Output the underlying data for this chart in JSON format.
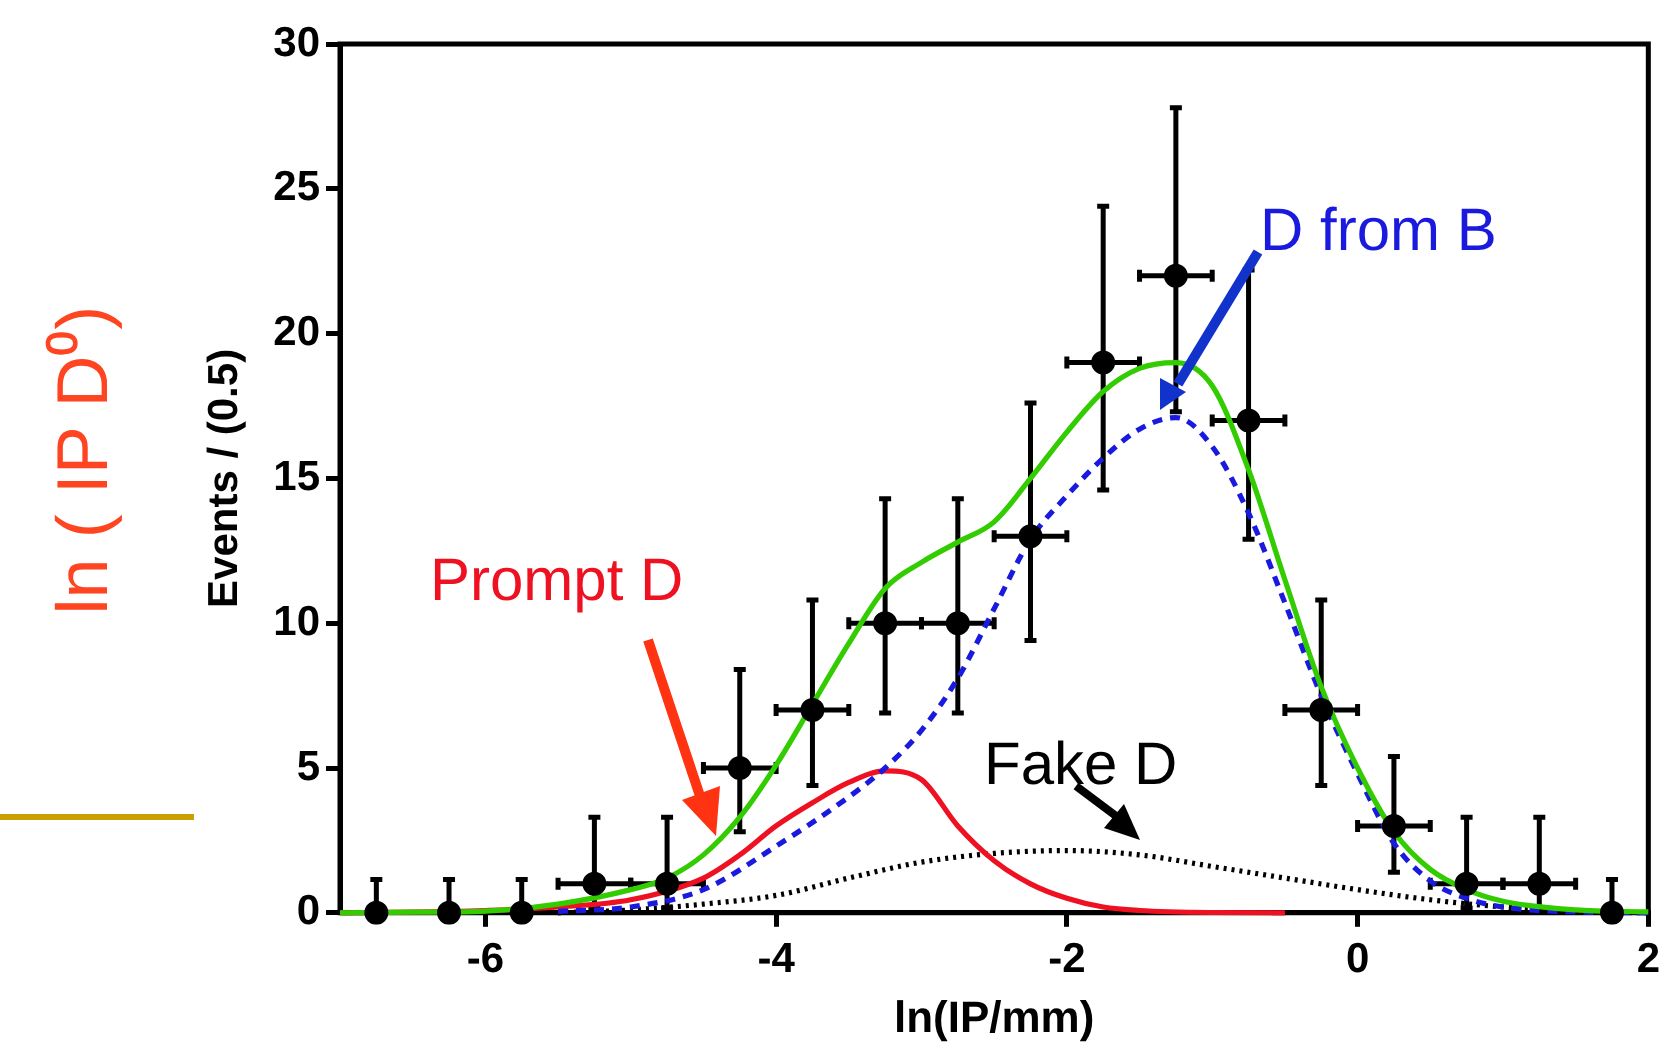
{
  "chart_data": {
    "type": "line",
    "xlabel": "ln(IP/mm)",
    "ylabel": "Events / (0.5)",
    "xlim": [
      -7,
      2
    ],
    "xticks": [
      -6,
      -4,
      -2,
      0,
      2
    ],
    "ylim": [
      0,
      30
    ],
    "yticks": [
      0,
      5,
      10,
      15,
      20,
      25,
      30
    ],
    "grid": false,
    "annotations": [
      "ln ( IP D⁰)"
    ],
    "series": [
      {
        "type": "scatter",
        "color": "#000000",
        "marker": "circle",
        "x": [
          -6.75,
          -6.25,
          -5.75,
          -5.25,
          -4.75,
          -4.25,
          -3.75,
          -3.25,
          -2.75,
          -2.25,
          -1.75,
          -1.25,
          -0.75,
          -0.25,
          0.25,
          0.75,
          1.25,
          1.75
        ],
        "values": [
          0,
          0,
          0,
          1,
          1,
          5,
          7,
          10,
          10,
          13,
          19,
          22,
          17,
          7,
          3,
          1,
          1,
          0
        ],
        "errors": [
          [
            0,
            1.15
          ],
          [
            0,
            1.15
          ],
          [
            0,
            1.15
          ],
          [
            0.17,
            3.3
          ],
          [
            0.17,
            3.3
          ],
          [
            2.8,
            8.4
          ],
          [
            4.4,
            10.8
          ],
          [
            6.9,
            14.3
          ],
          [
            6.9,
            14.3
          ],
          [
            9.4,
            17.6
          ],
          [
            14.6,
            24.4
          ],
          [
            17.3,
            27.8
          ],
          [
            12.9,
            22.2
          ],
          [
            4.4,
            10.8
          ],
          [
            1.4,
            5.4
          ],
          [
            0.17,
            3.3
          ],
          [
            0.17,
            3.3
          ],
          [
            0,
            1.15
          ]
        ],
        "xerrors": [
          null,
          null,
          null,
          0.25,
          0.25,
          0.25,
          0.25,
          0.25,
          0.25,
          0.25,
          0.25,
          0.25,
          0.25,
          0.25,
          0.25,
          0.25,
          0.25,
          null
        ]
      },
      {
        "type": "line",
        "color": "#33cc00",
        "line_style": "solid",
        "x": [
          -7,
          -6.5,
          -6,
          -5.5,
          -5,
          -4.75,
          -4.5,
          -4.25,
          -4,
          -3.75,
          -3.5,
          -3.25,
          -3,
          -2.75,
          -2.5,
          -2.25,
          -2,
          -1.75,
          -1.5,
          -1.25,
          -1,
          -0.75,
          -0.5,
          -0.25,
          0,
          0.25,
          0.5,
          0.75,
          1,
          1.5,
          2
        ],
        "values": [
          0,
          0.02,
          0.06,
          0.3,
          0.8,
          1.2,
          2,
          3.3,
          5.1,
          7.2,
          9.3,
          11.2,
          12.1,
          12.8,
          13.5,
          15,
          16.6,
          18,
          18.8,
          19,
          18.2,
          15.3,
          11.5,
          7.8,
          5,
          2.8,
          1.5,
          0.8,
          0.4,
          0.1,
          0.03
        ]
      },
      {
        "type": "line",
        "name": "D from B",
        "color": "#1a1adf",
        "line_style": "dashed",
        "x": [
          -5.5,
          -5,
          -4.5,
          -4,
          -3.5,
          -3.25,
          -3,
          -2.75,
          -2.5,
          -2.25,
          -2,
          -1.75,
          -1.5,
          -1.25,
          -1,
          -0.75,
          -0.5,
          -0.25,
          0,
          0.25,
          0.5,
          0.75,
          1,
          1.5,
          2
        ],
        "values": [
          0.05,
          0.2,
          0.8,
          2.3,
          4,
          5,
          6.3,
          8.1,
          10.5,
          12.9,
          14.4,
          15.7,
          16.7,
          17.1,
          16.1,
          13.8,
          10.7,
          7.5,
          4.8,
          2.4,
          1.1,
          0.5,
          0.2,
          0.03,
          0
        ]
      },
      {
        "type": "line",
        "name": "Prompt D",
        "color": "#ee1122",
        "line_style": "solid",
        "x": [
          -7,
          -6.5,
          -6,
          -5.5,
          -5,
          -4.5,
          -4.25,
          -4,
          -3.75,
          -3.5,
          -3.25,
          -3,
          -2.75,
          -2.5,
          -2.25,
          -2,
          -1.75,
          -1.5,
          -1,
          -0.5
        ],
        "values": [
          0,
          0.02,
          0.08,
          0.2,
          0.45,
          1.2,
          2,
          3,
          3.8,
          4.5,
          4.9,
          4.6,
          3,
          1.8,
          1,
          0.5,
          0.2,
          0.08,
          0.01,
          0
        ]
      },
      {
        "type": "line",
        "name": "Fake D",
        "color": "#000000",
        "line_style": "dotted",
        "x": [
          -5.5,
          -5,
          -4.5,
          -4,
          -3.5,
          -3,
          -2.5,
          -2,
          -1.5,
          -1,
          -0.5,
          0,
          0.5,
          1,
          1.5,
          2
        ],
        "values": [
          0,
          0.1,
          0.3,
          0.6,
          1.2,
          1.75,
          2.05,
          2.15,
          2,
          1.6,
          1.2,
          0.8,
          0.45,
          0.2,
          0.05,
          0
        ]
      }
    ]
  }
}
